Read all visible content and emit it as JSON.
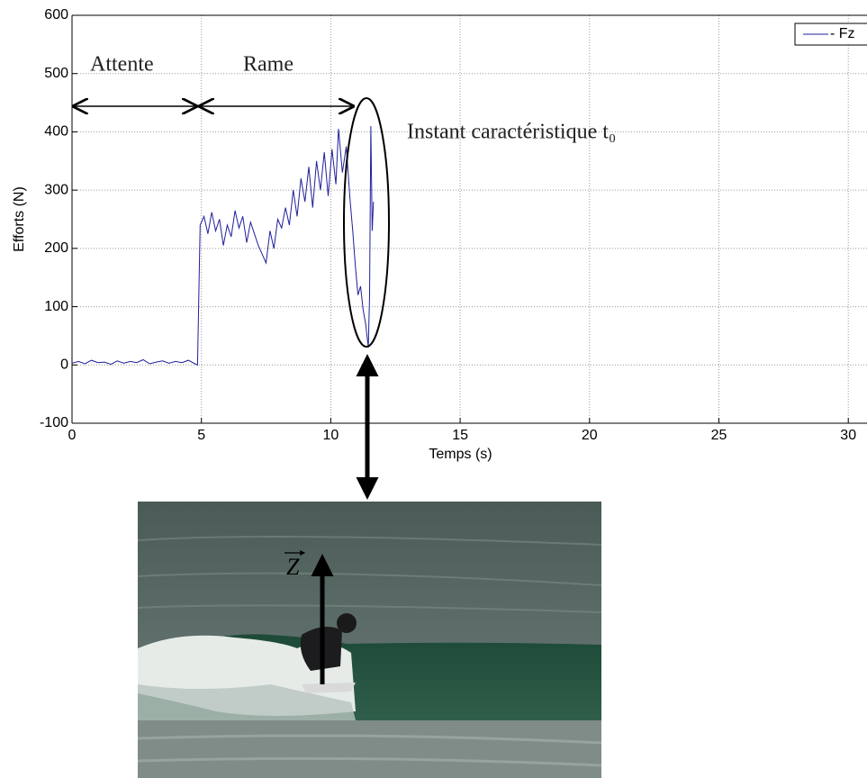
{
  "chart_data": {
    "type": "line",
    "xlabel": "Temps (s)",
    "ylabel": "Efforts (N)",
    "xlim": [
      0,
      30.5
    ],
    "ylim": [
      -100,
      600
    ],
    "xticks": [
      0,
      5,
      10,
      15,
      20,
      25,
      30
    ],
    "yticks": [
      -100,
      0,
      100,
      200,
      300,
      400,
      500,
      600
    ],
    "grid": true,
    "legend": "upper right",
    "annotations": [
      "Attente",
      "Rame",
      "Instant caractéristique t₀"
    ],
    "series": [
      {
        "name": "- Fz",
        "color": "#1f1f9c",
        "x": [
          0,
          0.25,
          0.5,
          0.75,
          1,
          1.25,
          1.5,
          1.75,
          2,
          2.25,
          2.5,
          2.75,
          3,
          3.25,
          3.5,
          3.75,
          4,
          4.25,
          4.5,
          4.75,
          4.85,
          4.95,
          5.1,
          5.25,
          5.4,
          5.55,
          5.7,
          5.85,
          6,
          6.15,
          6.3,
          6.45,
          6.6,
          6.75,
          6.9,
          7.05,
          7.2,
          7.35,
          7.5,
          7.65,
          7.8,
          7.95,
          8.1,
          8.25,
          8.4,
          8.55,
          8.7,
          8.85,
          9,
          9.15,
          9.3,
          9.45,
          9.6,
          9.75,
          9.9,
          10.05,
          10.2,
          10.3,
          10.45,
          10.6,
          10.75,
          10.85,
          10.95,
          11.05,
          11.15,
          11.25,
          11.35,
          11.45,
          11.5,
          11.55,
          11.6,
          11.65
        ],
        "values": [
          3,
          6,
          2,
          8,
          4,
          5,
          1,
          7,
          3,
          6,
          4,
          9,
          2,
          5,
          7,
          3,
          6,
          4,
          8,
          2,
          0,
          240,
          255,
          225,
          262,
          230,
          250,
          205,
          240,
          220,
          265,
          235,
          255,
          210,
          245,
          225,
          205,
          190,
          175,
          230,
          200,
          250,
          235,
          270,
          240,
          300,
          255,
          320,
          280,
          340,
          270,
          350,
          300,
          365,
          290,
          370,
          310,
          405,
          330,
          375,
          280,
          230,
          170,
          120,
          135,
          95,
          70,
          30,
          120,
          410,
          230,
          280
        ]
      }
    ]
  },
  "photo": {
    "vector_label": "Z"
  }
}
